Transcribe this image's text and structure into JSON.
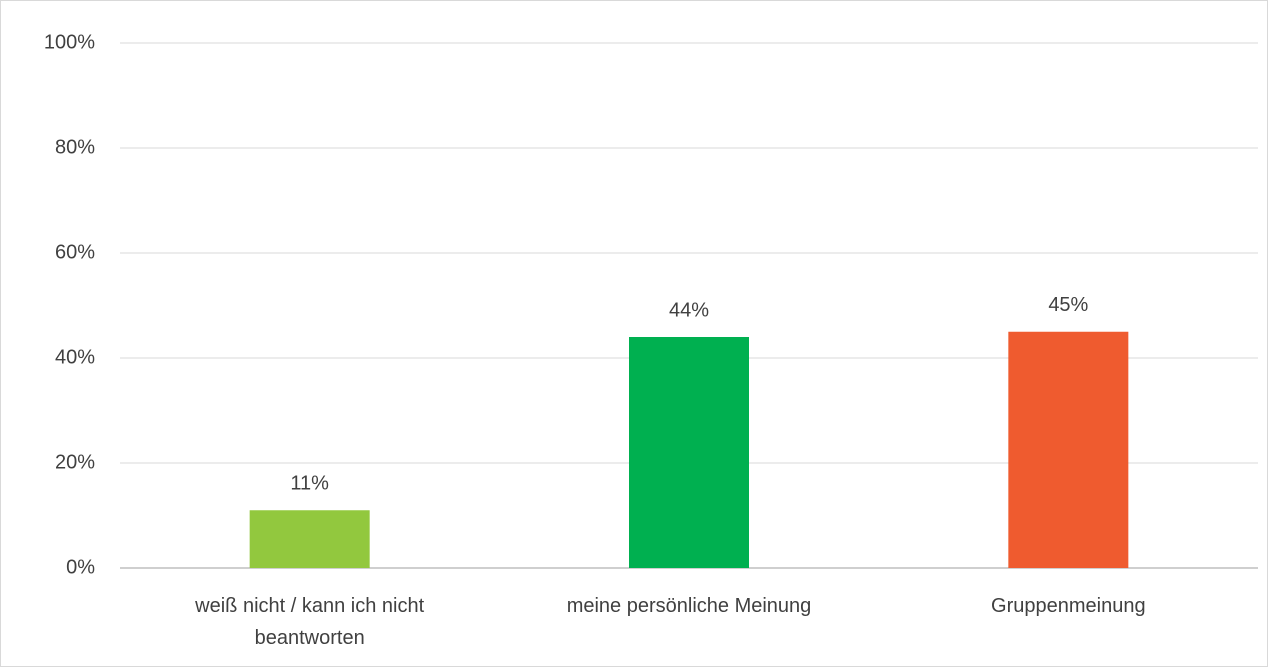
{
  "chart_data": {
    "type": "bar",
    "categories": [
      "weiß nicht / kann ich nicht beantworten",
      "meine persönliche Meinung",
      "Gruppenmeinung"
    ],
    "values": [
      11,
      44,
      45
    ],
    "value_labels": [
      "11%",
      "44%",
      "45%"
    ],
    "colors": [
      "#92c83e",
      "#00b050",
      "#ef5b2f"
    ],
    "ylim": [
      0,
      100
    ],
    "yticks": [
      {
        "value": 0,
        "label": "0%"
      },
      {
        "value": 20,
        "label": "20%"
      },
      {
        "value": 40,
        "label": "40%"
      },
      {
        "value": 60,
        "label": "60%"
      },
      {
        "value": 80,
        "label": "80%"
      },
      {
        "value": 100,
        "label": "100%"
      }
    ],
    "grid": true
  }
}
